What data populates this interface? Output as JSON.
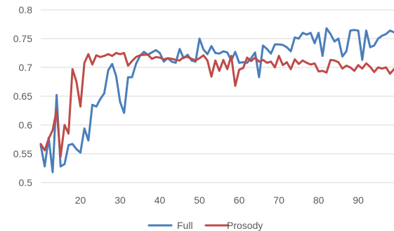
{
  "chart_data": {
    "type": "line",
    "title": "",
    "xlabel": "",
    "ylabel": "",
    "xlim": [
      10,
      99
    ],
    "ylim": [
      0.5,
      0.8
    ],
    "yticks": [
      0.5,
      0.55,
      0.6,
      0.65,
      0.7,
      0.75,
      0.8
    ],
    "ytick_labels": [
      "0.5",
      "0.55",
      "0.6",
      "0.65",
      "0.7",
      "0.75",
      "0.8"
    ],
    "xticks": [
      20,
      30,
      40,
      50,
      60,
      70,
      80,
      90
    ],
    "xtick_labels": [
      "20",
      "30",
      "40",
      "50",
      "60",
      "70",
      "80",
      "90"
    ],
    "grid": "horizontal",
    "legend": "bottom",
    "x": [
      10,
      11,
      12,
      13,
      14,
      15,
      16,
      17,
      18,
      19,
      20,
      21,
      22,
      23,
      24,
      25,
      26,
      27,
      28,
      29,
      30,
      31,
      32,
      33,
      34,
      35,
      36,
      37,
      38,
      39,
      40,
      41,
      42,
      43,
      44,
      45,
      46,
      47,
      48,
      49,
      50,
      51,
      52,
      53,
      54,
      55,
      56,
      57,
      58,
      59,
      60,
      61,
      62,
      63,
      64,
      65,
      66,
      67,
      68,
      69,
      70,
      71,
      72,
      73,
      74,
      75,
      76,
      77,
      78,
      79,
      80,
      81,
      82,
      83,
      84,
      85,
      86,
      87,
      88,
      89,
      90,
      91,
      92,
      93,
      94,
      95,
      96,
      97,
      98,
      99
    ],
    "series": [
      {
        "name": "Full",
        "color": "#4a7ebb",
        "values": [
          0.565,
          0.528,
          0.578,
          0.518,
          0.652,
          0.528,
          0.532,
          0.565,
          0.567,
          0.558,
          0.552,
          0.594,
          0.573,
          0.635,
          0.632,
          0.645,
          0.655,
          0.695,
          0.706,
          0.685,
          0.64,
          0.621,
          0.683,
          0.683,
          0.706,
          0.72,
          0.727,
          0.722,
          0.726,
          0.73,
          0.725,
          0.71,
          0.716,
          0.71,
          0.708,
          0.732,
          0.716,
          0.722,
          0.712,
          0.71,
          0.75,
          0.731,
          0.723,
          0.737,
          0.725,
          0.724,
          0.728,
          0.726,
          0.712,
          0.727,
          0.708,
          0.709,
          0.708,
          0.716,
          0.726,
          0.683,
          0.738,
          0.732,
          0.724,
          0.74,
          0.74,
          0.739,
          0.735,
          0.728,
          0.752,
          0.75,
          0.76,
          0.757,
          0.76,
          0.742,
          0.76,
          0.72,
          0.768,
          0.758,
          0.745,
          0.75,
          0.719,
          0.728,
          0.764,
          0.765,
          0.764,
          0.713,
          0.764,
          0.735,
          0.738,
          0.75,
          0.755,
          0.758,
          0.764,
          0.761
        ]
      },
      {
        "name": "Prosody",
        "color": "#be4b48",
        "values": [
          0.567,
          0.556,
          0.576,
          0.591,
          0.626,
          0.545,
          0.6,
          0.585,
          0.697,
          0.675,
          0.632,
          0.708,
          0.723,
          0.705,
          0.721,
          0.718,
          0.72,
          0.723,
          0.72,
          0.725,
          0.723,
          0.725,
          0.703,
          0.711,
          0.718,
          0.721,
          0.722,
          0.722,
          0.715,
          0.718,
          0.717,
          0.714,
          0.716,
          0.715,
          0.713,
          0.712,
          0.718,
          0.718,
          0.715,
          0.712,
          0.716,
          0.721,
          0.712,
          0.684,
          0.712,
          0.694,
          0.713,
          0.697,
          0.72,
          0.668,
          0.696,
          0.699,
          0.717,
          0.711,
          0.717,
          0.71,
          0.713,
          0.708,
          0.71,
          0.7,
          0.72,
          0.704,
          0.709,
          0.697,
          0.714,
          0.706,
          0.712,
          0.708,
          0.705,
          0.707,
          0.693,
          0.694,
          0.691,
          0.713,
          0.712,
          0.709,
          0.698,
          0.703,
          0.7,
          0.694,
          0.704,
          0.698,
          0.707,
          0.701,
          0.692,
          0.7,
          0.698,
          0.7,
          0.689,
          0.697
        ]
      }
    ]
  }
}
